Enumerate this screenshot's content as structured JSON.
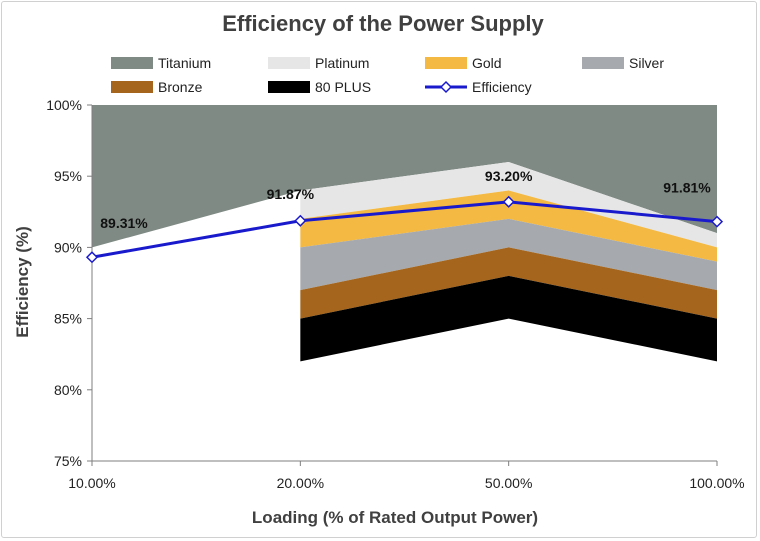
{
  "chart_data": {
    "type": "area",
    "title": "Efficiency of the Power Supply",
    "xlabel": "Loading (% of Rated Output Power)",
    "ylabel": "Efficiency (%)",
    "categories": [
      "10.00%",
      "20.00%",
      "50.00%",
      "100.00%"
    ],
    "ylim": [
      75,
      100
    ],
    "yticks": [
      75,
      80,
      85,
      90,
      95,
      100
    ],
    "ytick_labels": [
      "75%",
      "80%",
      "85%",
      "90%",
      "95%",
      "100%"
    ],
    "legend_position": "top",
    "bands": [
      {
        "name": "Titanium",
        "color": "#7f8a84",
        "values": [
          90,
          94,
          96,
          91
        ],
        "floor": [
          100,
          100,
          100,
          100
        ]
      },
      {
        "name": "Platinum",
        "color": "#e6e6e6",
        "values": [
          null,
          92,
          94,
          90
        ]
      },
      {
        "name": "Gold",
        "color": "#f4b942",
        "values": [
          null,
          90,
          92,
          89
        ]
      },
      {
        "name": "Silver",
        "color": "#a6a9ad",
        "values": [
          null,
          87,
          90,
          87
        ]
      },
      {
        "name": "Bronze",
        "color": "#a5651c",
        "values": [
          null,
          85,
          88,
          85
        ]
      },
      {
        "name": "80 PLUS",
        "color": "#000000",
        "values": [
          null,
          82,
          85,
          82
        ]
      }
    ],
    "series": [
      {
        "name": "Efficiency",
        "color": "#1a1acd",
        "values": [
          89.31,
          91.87,
          93.2,
          91.81
        ],
        "labels": [
          "89.31%",
          "91.87%",
          "93.20%",
          "91.81%"
        ]
      }
    ],
    "grid": false
  }
}
